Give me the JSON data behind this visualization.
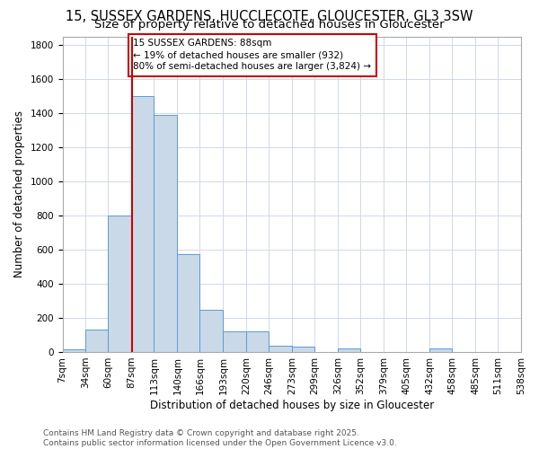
{
  "title1": "15, SUSSEX GARDENS, HUCCLECOTE, GLOUCESTER, GL3 3SW",
  "title2": "Size of property relative to detached houses in Gloucester",
  "xlabel": "Distribution of detached houses by size in Gloucester",
  "ylabel": "Number of detached properties",
  "bin_edges": [
    7,
    34,
    60,
    87,
    113,
    140,
    166,
    193,
    220,
    246,
    273,
    299,
    326,
    352,
    379,
    405,
    432,
    458,
    485,
    511,
    538
  ],
  "bar_heights": [
    15,
    130,
    800,
    1500,
    1390,
    575,
    250,
    120,
    120,
    35,
    30,
    0,
    20,
    0,
    0,
    0,
    20,
    0,
    0,
    0
  ],
  "bar_color": "#c9d9e8",
  "bar_edge_color": "#5b9bd5",
  "background_color": "#ffffff",
  "grid_color": "#d0d8e8",
  "property_size": 88,
  "vline_color": "#cc0000",
  "annotation_line1": "15 SUSSEX GARDENS: 88sqm",
  "annotation_line2": "← 19% of detached houses are smaller (932)",
  "annotation_line3": "80% of semi-detached houses are larger (3,824) →",
  "annotation_box_color": "#ffffff",
  "annotation_box_edge_color": "#cc0000",
  "ylim": [
    0,
    1850
  ],
  "yticks": [
    0,
    200,
    400,
    600,
    800,
    1000,
    1200,
    1400,
    1600,
    1800
  ],
  "footer_text": "Contains HM Land Registry data © Crown copyright and database right 2025.\nContains public sector information licensed under the Open Government Licence v3.0.",
  "title_fontsize": 10.5,
  "subtitle_fontsize": 9.5,
  "tick_label_fontsize": 7.5,
  "axis_label_fontsize": 8.5,
  "annotation_fontsize": 7.5,
  "footer_fontsize": 6.5
}
